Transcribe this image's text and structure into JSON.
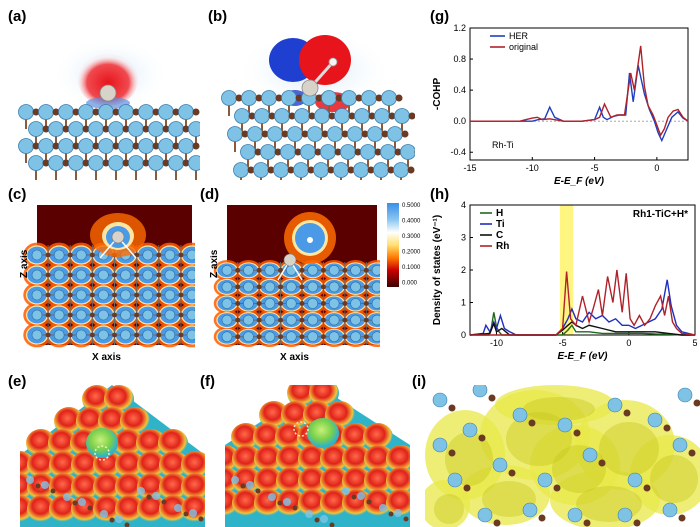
{
  "labels": {
    "a": "(a)",
    "b": "(b)",
    "c": "(c)",
    "d": "(d)",
    "e": "(e)",
    "f": "(f)",
    "g": "(g)",
    "h": "(h)",
    "i": "(i)"
  },
  "contour": {
    "xlabel": "X axis",
    "ylabel": "Z axis",
    "colorbar_ticks": [
      "0.5000",
      "0.4000",
      "0.3000",
      "0.2000",
      "0.1000",
      "0.000"
    ]
  },
  "colors": {
    "atom_ti": "#7ec3e6",
    "atom_c": "#6b3a22",
    "atom_rh": "#d8d3c8",
    "pos": "#e8141c",
    "neg": "#1f3fd0"
  },
  "chart_data": [
    {
      "type": "line",
      "panel": "g",
      "xlabel": "E-E_F (eV)",
      "ylabel": "-COHP",
      "annotation": "Rh-Ti",
      "xlim": [
        -15,
        2.5
      ],
      "ylim": [
        -0.5,
        1.2
      ],
      "xticks": [
        -15,
        -10,
        -5,
        0
      ],
      "yticks": [
        -0.4,
        0.0,
        0.4,
        0.8,
        1.2
      ],
      "series": [
        {
          "name": "HER",
          "color": "#1f3fbf",
          "x": [
            -15,
            -10,
            -9.5,
            -9.0,
            -8.6,
            -8.2,
            -7.5,
            -6,
            -5,
            -4.6,
            -4.3,
            -4.0,
            -3.5,
            -3.0,
            -2.5,
            -2.2,
            -1.9,
            -1.5,
            -1.0,
            -0.6,
            -0.2,
            0.1,
            0.4,
            0.8,
            1.2,
            1.7,
            2.1,
            2.5
          ],
          "y": [
            0,
            0,
            0.02,
            0.03,
            0.18,
            0.05,
            0.0,
            0.0,
            0.02,
            0.18,
            0.05,
            0.02,
            0.06,
            0.08,
            0.08,
            0.62,
            0.25,
            0.72,
            0.35,
            0.15,
            0.0,
            -0.15,
            -0.25,
            -0.1,
            0.05,
            0.12,
            0.04,
            0.0
          ]
        },
        {
          "name": "original",
          "color": "#b0222a",
          "x": [
            -15,
            -11,
            -10.5,
            -10.0,
            -9.6,
            -9.2,
            -8.6,
            -7.5,
            -6,
            -5,
            -4.6,
            -4.2,
            -3.7,
            -3.2,
            -2.6,
            -2.1,
            -1.8,
            -1.3,
            -1.0,
            -0.7,
            -0.3,
            0.0,
            0.3,
            0.6,
            0.9,
            1.3,
            1.7,
            2.1,
            2.5
          ],
          "y": [
            0,
            0,
            0.02,
            0.04,
            0.05,
            0.02,
            0.03,
            0.0,
            0.0,
            0.02,
            0.05,
            0.22,
            0.05,
            0.08,
            0.08,
            0.62,
            0.4,
            0.97,
            0.45,
            0.2,
            0.08,
            -0.05,
            -0.18,
            -0.1,
            0.05,
            0.13,
            0.15,
            0.05,
            0.0
          ]
        }
      ]
    },
    {
      "type": "line",
      "panel": "h",
      "title": "Rh1-TiC+H*",
      "xlabel": "E-E_F (eV)",
      "ylabel": "Density of states (eV⁻¹)",
      "xlim": [
        -12,
        5
      ],
      "ylim": [
        0,
        4
      ],
      "xticks": [
        -10,
        -5,
        0,
        5
      ],
      "yticks": [
        0,
        1,
        2,
        3,
        4
      ],
      "highlight": [
        -5.2,
        -4.2
      ],
      "series": [
        {
          "name": "H",
          "color": "#1f6a1f",
          "x": [
            -12,
            -10.6,
            -10.4,
            -10.2,
            -10.0,
            -9.8,
            -9.6,
            -8.5,
            -5,
            -4.6,
            -4.3,
            -4.0,
            -3,
            -2,
            -1,
            0,
            1,
            2,
            3,
            4,
            5
          ],
          "y": [
            0,
            0,
            0.2,
            0.7,
            0.25,
            0.1,
            0,
            0,
            0,
            0.15,
            0.3,
            0.1,
            0.1,
            0.05,
            0.05,
            0.05,
            0.05,
            0.03,
            0.02,
            0,
            0
          ]
        },
        {
          "name": "Ti",
          "color": "#1f2fbf",
          "x": [
            -12,
            -11,
            -10.8,
            -10.5,
            -10.2,
            -10.0,
            -9.7,
            -9.4,
            -9.0,
            -8.5,
            -5.5,
            -5,
            -4.6,
            -4.3,
            -4.0,
            -3.5,
            -3.0,
            -2.5,
            -2.0,
            -1.5,
            -1.0,
            -0.5,
            0,
            0.5,
            1.0,
            1.5,
            2.0,
            2.5,
            2.9,
            3.2,
            3.6,
            4.0,
            5
          ],
          "y": [
            0,
            0.05,
            0.3,
            0.1,
            0.4,
            0.2,
            0.6,
            0.2,
            0.1,
            0,
            0,
            0.2,
            0.5,
            0.8,
            0.5,
            0.4,
            0.7,
            0.5,
            0.6,
            0.4,
            0.5,
            0.3,
            0.3,
            0.2,
            0.3,
            0.4,
            0.5,
            0.8,
            1.7,
            0.9,
            0.3,
            0.1,
            0
          ]
        },
        {
          "name": "C",
          "color": "#111111",
          "x": [
            -12,
            -10.5,
            -10.2,
            -10.0,
            -9.6,
            -9.0,
            -5.5,
            -5,
            -4.6,
            -4.3,
            -4.0,
            -3.5,
            -3.0,
            -2,
            -1,
            0,
            1,
            2,
            3,
            4,
            5
          ],
          "y": [
            0,
            0.05,
            0.35,
            0.1,
            0.2,
            0,
            0,
            0.15,
            0.3,
            0.4,
            0.3,
            0.2,
            0.3,
            0.2,
            0.1,
            0.1,
            0.1,
            0.1,
            0.05,
            0,
            0
          ]
        },
        {
          "name": "Rh",
          "color": "#b0222a",
          "x": [
            -12,
            -5.5,
            -5.0,
            -4.7,
            -4.4,
            -4.0,
            -3.5,
            -3.0,
            -2.7,
            -2.3,
            -2.0,
            -1.6,
            -1.2,
            -0.9,
            -0.5,
            -0.2,
            0.1,
            0.4,
            0.8,
            1.2,
            1.6,
            2.0,
            2.4,
            2.7,
            3.0,
            3.3,
            3.6,
            4.0,
            5
          ],
          "y": [
            0,
            0,
            0.2,
            1.95,
            0.5,
            0.3,
            1.2,
            0.4,
            0.8,
            1.4,
            0.6,
            1.8,
            1.0,
            2.0,
            0.7,
            1.9,
            0.5,
            0.3,
            0.6,
            0.3,
            0.5,
            0.9,
            1.2,
            0.6,
            1.2,
            0.4,
            0.2,
            0.05,
            0
          ]
        }
      ]
    }
  ]
}
